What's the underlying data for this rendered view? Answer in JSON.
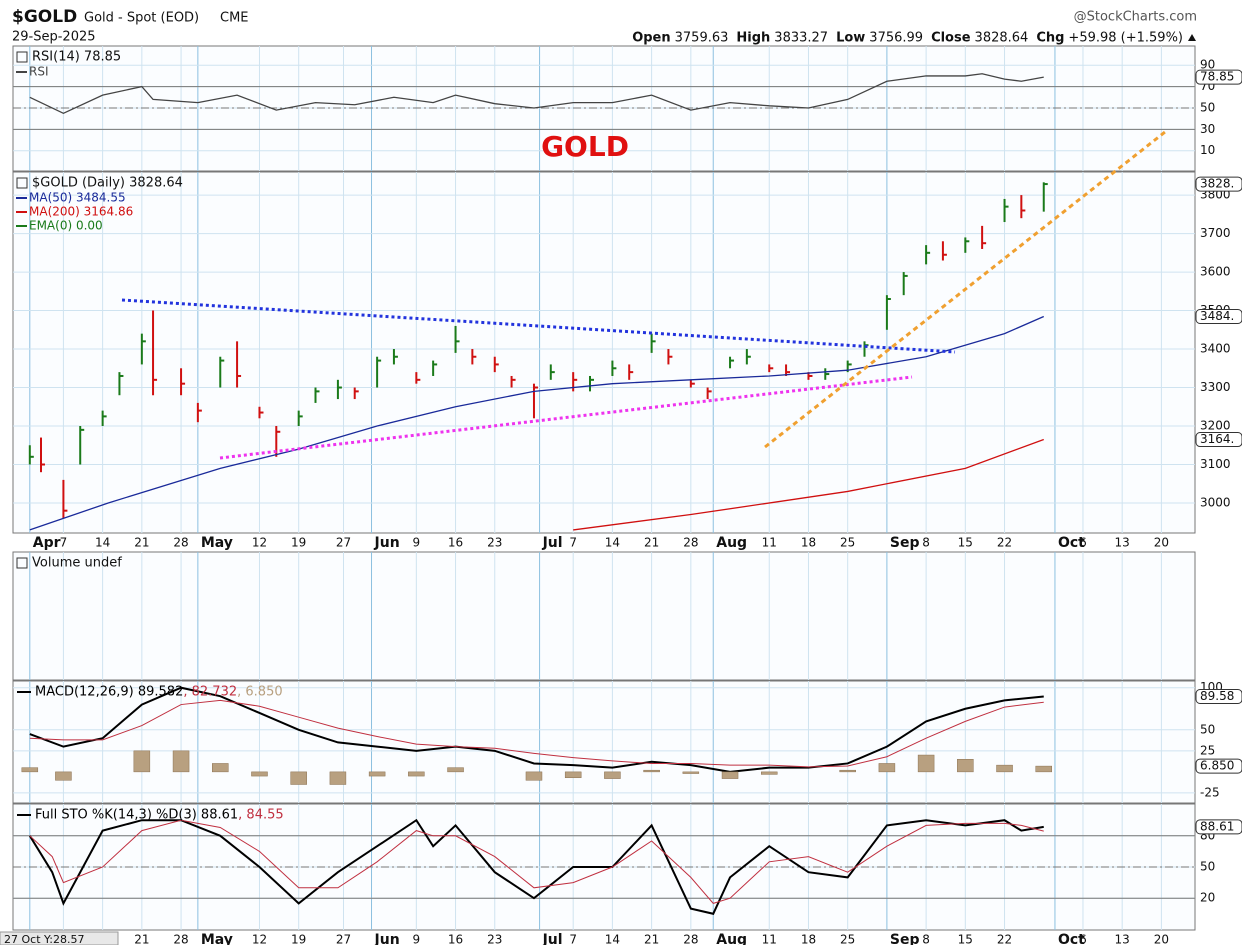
{
  "header": {
    "symbol": "$GOLD",
    "name": "Gold - Spot (EOD)",
    "exchange": "CME",
    "brand": "@StockCharts.com",
    "date": "29-Sep-2025",
    "quote": [
      {
        "label": "Open",
        "value": "3759.63"
      },
      {
        "label": "High",
        "value": "3833.27"
      },
      {
        "label": "Low",
        "value": "3756.99"
      },
      {
        "label": "Close",
        "value": "3828.64"
      },
      {
        "label": "Chg",
        "value": "+59.98 (+1.59%)"
      }
    ],
    "annotation": "GOLD",
    "crosshair": "27 Oct Y:28.57"
  },
  "chart_data": [
    {
      "type": "line",
      "title": "RSI(14) 78.85",
      "ylim": [
        -9,
        108
      ],
      "yticks": [
        10,
        30,
        50,
        70,
        90
      ],
      "levels": [
        30,
        50,
        70
      ],
      "series": [
        {
          "name": "RSI",
          "color": "#444444",
          "last_label": "78.85",
          "x": [
            91,
            97,
            104,
            111,
            113,
            121,
            128,
            135,
            142,
            149,
            156,
            163,
            167,
            174,
            181,
            188,
            195,
            202,
            209,
            216,
            223,
            230,
            237,
            244,
            251,
            258,
            261,
            265,
            268,
            272
          ],
          "values": [
            60,
            45,
            62,
            70,
            58,
            55,
            62,
            48,
            55,
            53,
            60,
            55,
            62,
            54,
            50,
            55,
            55,
            62,
            48,
            55,
            52,
            50,
            58,
            75,
            80,
            80,
            82,
            77,
            75,
            78.85
          ]
        }
      ]
    },
    {
      "type": "ohlc",
      "title": "$GOLD (Daily) 3828.64",
      "ylim": [
        2922,
        3860
      ],
      "yticks": [
        3000,
        3100,
        3200,
        3300,
        3400,
        3500,
        3600,
        3700,
        3800
      ],
      "xlim": [
        88,
        299
      ],
      "xticks": [
        {
          "value": 91,
          "label": "Apr"
        },
        {
          "value": 97,
          "label": "7"
        },
        {
          "value": 104,
          "label": "14"
        },
        {
          "value": 111,
          "label": "21"
        },
        {
          "value": 118,
          "label": "28"
        },
        {
          "value": 121,
          "label": "May"
        },
        {
          "value": 132,
          "label": "12"
        },
        {
          "value": 139,
          "label": "19"
        },
        {
          "value": 147,
          "label": "27"
        },
        {
          "value": 152,
          "label": "Jun"
        },
        {
          "value": 160,
          "label": "9"
        },
        {
          "value": 167,
          "label": "16"
        },
        {
          "value": 174,
          "label": "23"
        },
        {
          "value": 182,
          "label": "Jul"
        },
        {
          "value": 188,
          "label": "7"
        },
        {
          "value": 195,
          "label": "14"
        },
        {
          "value": 202,
          "label": "21"
        },
        {
          "value": 209,
          "label": "28"
        },
        {
          "value": 213,
          "label": "Aug"
        },
        {
          "value": 223,
          "label": "11"
        },
        {
          "value": 230,
          "label": "18"
        },
        {
          "value": 237,
          "label": "25"
        },
        {
          "value": 244,
          "label": "Sep"
        },
        {
          "value": 251,
          "label": "8"
        },
        {
          "value": 258,
          "label": "15"
        },
        {
          "value": 265,
          "label": "22"
        },
        {
          "value": 274,
          "label": "Oct"
        },
        {
          "value": 279,
          "label": "6"
        },
        {
          "value": 286,
          "label": "13"
        },
        {
          "value": 293,
          "label": "20"
        }
      ],
      "up_color": "#1a7a1a",
      "down_color": "#d01010",
      "last_label": "3828.",
      "x": [
        91,
        93,
        97,
        100,
        104,
        107,
        111,
        113,
        118,
        121,
        125,
        128,
        132,
        135,
        139,
        142,
        146,
        149,
        153,
        156,
        160,
        163,
        167,
        170,
        174,
        177,
        181,
        184,
        188,
        191,
        195,
        198,
        202,
        205,
        209,
        212,
        216,
        219,
        223,
        226,
        230,
        233,
        237,
        240,
        244,
        247,
        251,
        254,
        258,
        261,
        265,
        268,
        272
      ],
      "high": [
        3150,
        3170,
        3060,
        3200,
        3240,
        3340,
        3440,
        3500,
        3350,
        3260,
        3380,
        3420,
        3250,
        3200,
        3240,
        3300,
        3320,
        3300,
        3380,
        3400,
        3340,
        3370,
        3460,
        3400,
        3380,
        3330,
        3310,
        3360,
        3340,
        3330,
        3370,
        3360,
        3440,
        3400,
        3320,
        3300,
        3380,
        3400,
        3360,
        3360,
        3340,
        3350,
        3370,
        3420,
        3540,
        3600,
        3670,
        3680,
        3690,
        3720,
        3790,
        3800,
        3833.27
      ],
      "low": [
        3100,
        3080,
        2960,
        3100,
        3200,
        3280,
        3360,
        3280,
        3280,
        3210,
        3300,
        3300,
        3220,
        3120,
        3200,
        3260,
        3270,
        3270,
        3300,
        3360,
        3310,
        3330,
        3390,
        3360,
        3340,
        3300,
        3220,
        3320,
        3290,
        3290,
        3330,
        3320,
        3390,
        3360,
        3300,
        3270,
        3350,
        3360,
        3340,
        3330,
        3320,
        3320,
        3340,
        3380,
        3450,
        3540,
        3620,
        3630,
        3650,
        3660,
        3730,
        3740,
        3756.99
      ],
      "close": [
        3120,
        3100,
        2980,
        3190,
        3225,
        3330,
        3420,
        3320,
        3310,
        3240,
        3370,
        3330,
        3235,
        3185,
        3225,
        3290,
        3300,
        3290,
        3370,
        3380,
        3320,
        3360,
        3420,
        3380,
        3360,
        3320,
        3300,
        3340,
        3320,
        3320,
        3350,
        3340,
        3420,
        3380,
        3310,
        3290,
        3370,
        3380,
        3350,
        3340,
        3330,
        3335,
        3360,
        3410,
        3530,
        3590,
        3650,
        3645,
        3680,
        3675,
        3770,
        3760,
        3828.64
      ],
      "series": [
        {
          "name": "MA(50) 3484.55",
          "color": "#1a2a9a",
          "last_label": "3484.",
          "x": [
            91,
            105,
            125,
            139,
            153,
            167,
            181,
            195,
            209,
            223,
            237,
            251,
            265,
            272
          ],
          "values": [
            2930,
            3000,
            3090,
            3140,
            3200,
            3250,
            3290,
            3310,
            3320,
            3330,
            3345,
            3380,
            3440,
            3484.55
          ]
        },
        {
          "name": "MA(200) 3164.86",
          "color": "#d01010",
          "last_label": "3164.",
          "x": [
            188,
            209,
            237,
            258,
            272
          ],
          "values": [
            2930,
            2970,
            3030,
            3090,
            3164.86
          ]
        },
        {
          "name": "EMA(0) 0.00",
          "color": "#1a7a1a"
        }
      ]
    },
    {
      "type": "bar",
      "title": "Volume undef"
    },
    {
      "type": "line",
      "ylim": [
        -37,
        108
      ],
      "yticks": [
        -25,
        25,
        50,
        100
      ],
      "series": [
        {
          "name": "MACD(12,26,9) 89.582",
          "color": "#000000",
          "width": 2,
          "last_label": "89.58",
          "x": [
            91,
            97,
            104,
            111,
            118,
            125,
            132,
            139,
            146,
            153,
            160,
            167,
            174,
            181,
            188,
            195,
            202,
            209,
            216,
            223,
            230,
            237,
            244,
            251,
            258,
            265,
            272
          ],
          "values": [
            45,
            30,
            40,
            80,
            100,
            90,
            70,
            50,
            35,
            30,
            25,
            30,
            25,
            10,
            8,
            5,
            12,
            8,
            0,
            5,
            5,
            10,
            30,
            60,
            75,
            85,
            89.582
          ]
        },
        {
          "name": ", 82.732",
          "color": "#c03040",
          "width": 1,
          "x": [
            91,
            97,
            104,
            111,
            118,
            125,
            132,
            139,
            146,
            153,
            160,
            167,
            174,
            181,
            188,
            195,
            202,
            209,
            216,
            223,
            230,
            237,
            244,
            251,
            258,
            265,
            272
          ],
          "values": [
            40,
            38,
            38,
            55,
            80,
            85,
            78,
            65,
            52,
            42,
            33,
            30,
            28,
            22,
            17,
            13,
            10,
            10,
            8,
            8,
            6,
            7,
            18,
            40,
            60,
            77,
            82.732
          ]
        },
        {
          "name": ", 6.850",
          "color": "#b8a080",
          "kind": "bar",
          "last_label": "6.850",
          "x": [
            91,
            97,
            104,
            111,
            118,
            125,
            132,
            139,
            146,
            153,
            160,
            167,
            174,
            181,
            188,
            195,
            202,
            209,
            216,
            223,
            230,
            237,
            244,
            251,
            258,
            265,
            272
          ],
          "values": [
            5,
            -10,
            0,
            25,
            25,
            10,
            -5,
            -15,
            -15,
            -5,
            -5,
            5,
            0,
            -10,
            -7,
            -8,
            2,
            -2,
            -8,
            -3,
            0,
            2,
            10,
            20,
            15,
            8,
            6.85
          ]
        }
      ]
    },
    {
      "type": "line",
      "ylim": [
        -10.6,
        110.6
      ],
      "yticks": [
        20,
        50,
        80
      ],
      "levels": [
        20,
        50,
        80
      ],
      "xlim": [
        88,
        299
      ],
      "xticks": [
        {
          "value": 91,
          "label": "Apr"
        },
        {
          "value": 97,
          "label": "7"
        },
        {
          "value": 104,
          "label": "14"
        },
        {
          "value": 111,
          "label": "21"
        },
        {
          "value": 118,
          "label": "28"
        },
        {
          "value": 121,
          "label": "May"
        },
        {
          "value": 132,
          "label": "12"
        },
        {
          "value": 139,
          "label": "19"
        },
        {
          "value": 147,
          "label": "27"
        },
        {
          "value": 152,
          "label": "Jun"
        },
        {
          "value": 160,
          "label": "9"
        },
        {
          "value": 167,
          "label": "16"
        },
        {
          "value": 174,
          "label": "23"
        },
        {
          "value": 182,
          "label": "Jul"
        },
        {
          "value": 188,
          "label": "7"
        },
        {
          "value": 195,
          "label": "14"
        },
        {
          "value": 202,
          "label": "21"
        },
        {
          "value": 209,
          "label": "28"
        },
        {
          "value": 213,
          "label": "Aug"
        },
        {
          "value": 223,
          "label": "11"
        },
        {
          "value": 230,
          "label": "18"
        },
        {
          "value": 237,
          "label": "25"
        },
        {
          "value": 244,
          "label": "Sep"
        },
        {
          "value": 251,
          "label": "8"
        },
        {
          "value": 258,
          "label": "15"
        },
        {
          "value": 265,
          "label": "22"
        },
        {
          "value": 274,
          "label": "Oct"
        },
        {
          "value": 279,
          "label": "6"
        },
        {
          "value": 286,
          "label": "13"
        },
        {
          "value": 293,
          "label": "20"
        }
      ],
      "series": [
        {
          "name": "Full STO %K(14,3) %D(3) 88.61",
          "color": "#000000",
          "width": 2,
          "last_label": "88.61",
          "x": [
            91,
            95,
            97,
            104,
            111,
            118,
            125,
            132,
            139,
            146,
            153,
            160,
            163,
            167,
            174,
            181,
            188,
            195,
            202,
            209,
            213,
            216,
            223,
            230,
            237,
            244,
            251,
            258,
            265,
            268,
            272
          ],
          "values": [
            80,
            45,
            15,
            85,
            95,
            95,
            80,
            50,
            15,
            45,
            70,
            95,
            70,
            90,
            45,
            20,
            50,
            50,
            90,
            10,
            5,
            40,
            70,
            45,
            40,
            90,
            95,
            90,
            95,
            85,
            88.61
          ]
        },
        {
          "name": ", 84.55",
          "color": "#c03040",
          "width": 1,
          "x": [
            91,
            95,
            97,
            104,
            111,
            118,
            125,
            132,
            139,
            146,
            153,
            160,
            163,
            167,
            174,
            181,
            188,
            195,
            202,
            209,
            213,
            216,
            223,
            230,
            237,
            244,
            251,
            258,
            265,
            268,
            272
          ],
          "values": [
            80,
            60,
            35,
            50,
            85,
            95,
            88,
            65,
            30,
            30,
            55,
            85,
            80,
            80,
            60,
            30,
            35,
            50,
            75,
            40,
            15,
            20,
            55,
            60,
            45,
            70,
            90,
            92,
            92,
            90,
            84.55
          ]
        }
      ]
    }
  ]
}
